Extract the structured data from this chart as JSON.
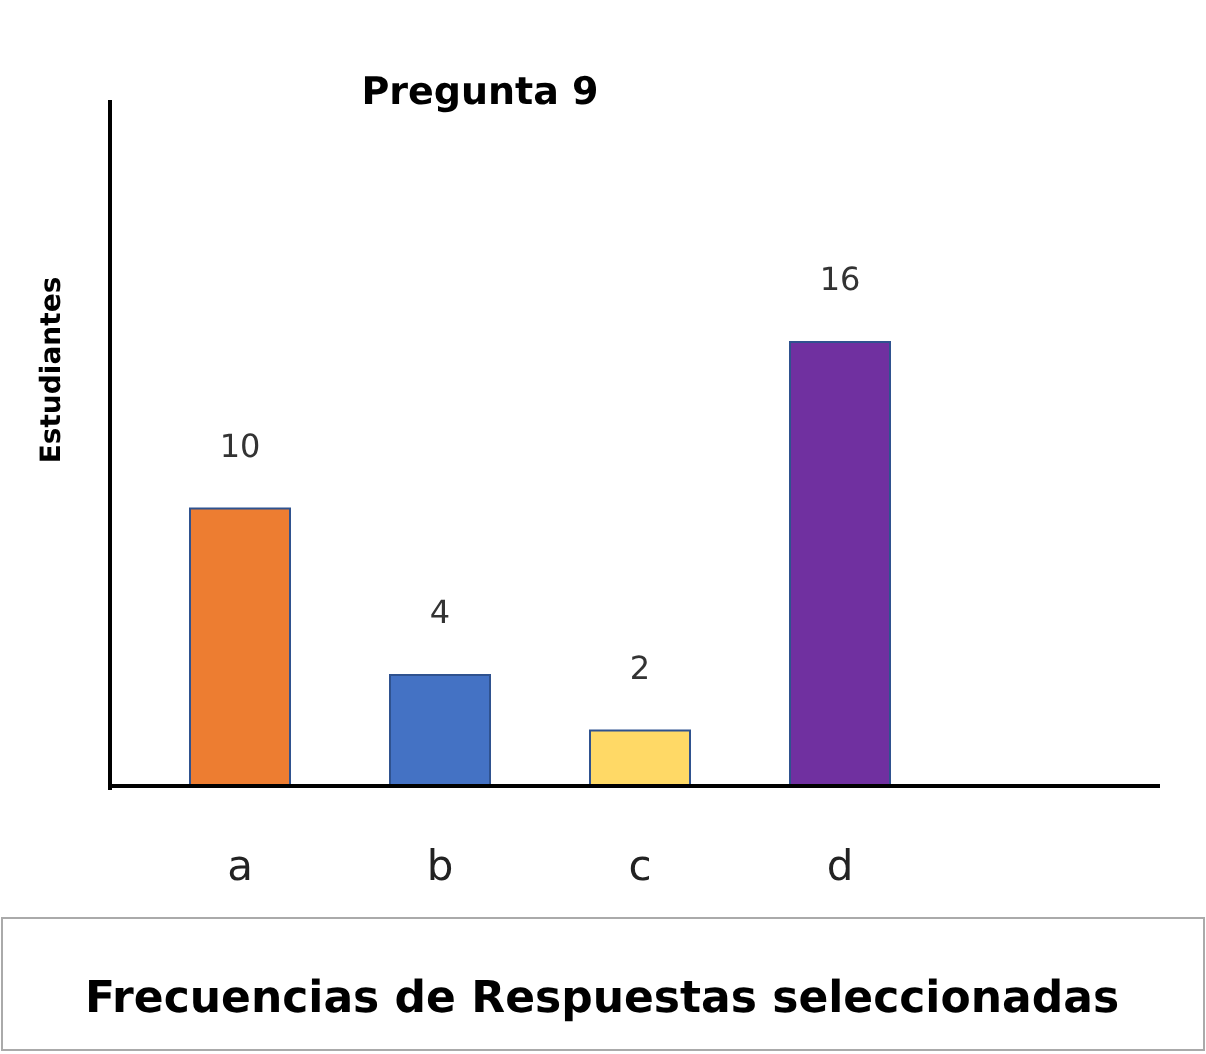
{
  "chart_data": {
    "type": "bar",
    "title": "Pregunta 9",
    "ylabel": "Estudiantes",
    "xlabel": "Frecuencias de Respuestas seleccionadas",
    "categories": [
      "a",
      "b",
      "c",
      "d"
    ],
    "values": [
      10,
      4,
      2,
      16
    ],
    "colors": [
      "#ed7d31",
      "#4472c4",
      "#ffd966",
      "#7030a0"
    ],
    "relative": false,
    "data_labels": true,
    "grid": false
  }
}
